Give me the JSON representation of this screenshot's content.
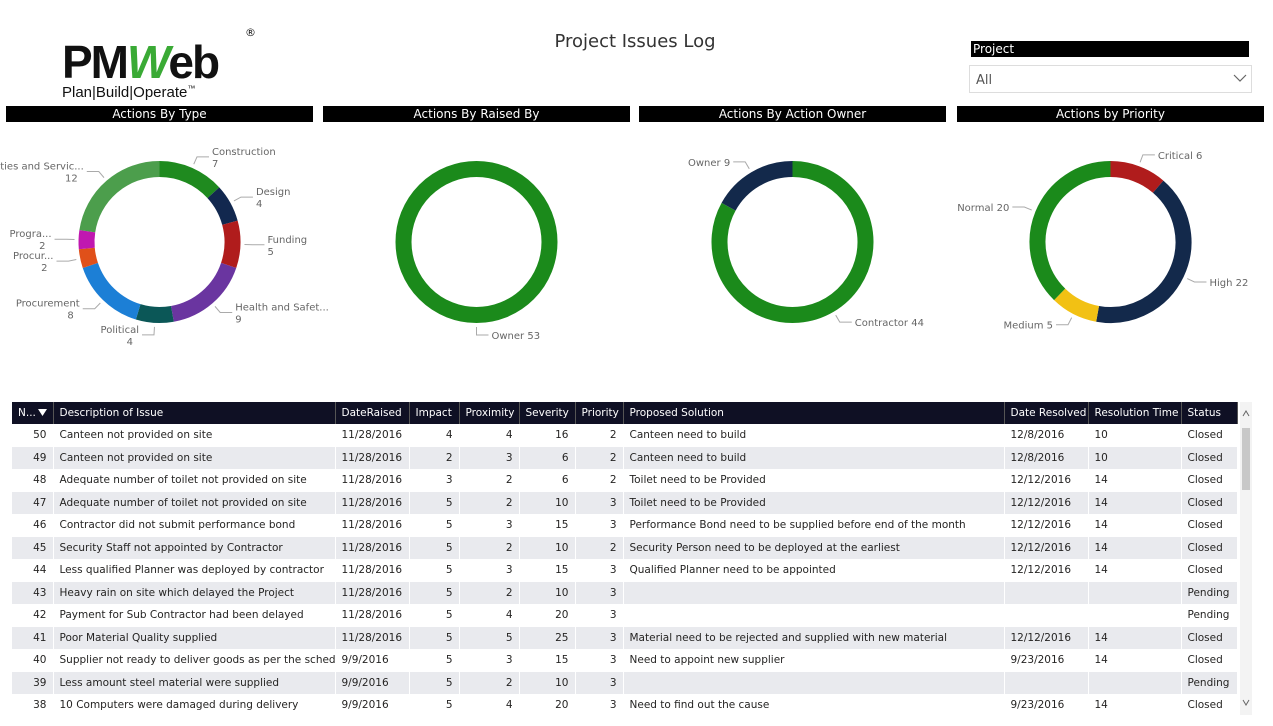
{
  "header": {
    "logo": {
      "parts": [
        "PM",
        "W",
        "eb"
      ],
      "registered": "®",
      "tagline": "Plan|Build|Operate",
      "trademark": "™"
    },
    "title": "Project Issues Log"
  },
  "filter": {
    "label": "Project",
    "value": "All"
  },
  "chart_data": [
    {
      "type": "pie",
      "donut": true,
      "title": "Actions By Type",
      "categories": [
        "Construction",
        "Design",
        "Funding",
        "Health and Safet...",
        "Political",
        "Procurement",
        "Procur...",
        "Progra...",
        "Utilities and Servic..."
      ],
      "values": [
        7,
        4,
        5,
        9,
        4,
        8,
        2,
        2,
        12
      ],
      "colors": [
        "#1f8a1f",
        "#12284f",
        "#b01c1c",
        "#6a35a0",
        "#0b5757",
        "#1c7fd6",
        "#e0501a",
        "#c018b0",
        "#4c9e4c"
      ]
    },
    {
      "type": "pie",
      "donut": true,
      "title": "Actions By Raised By",
      "categories": [
        "Owner"
      ],
      "values": [
        53
      ],
      "colors": [
        "#1b8a1b"
      ]
    },
    {
      "type": "pie",
      "donut": true,
      "title": "Actions By Action Owner",
      "categories": [
        "Contractor",
        "Owner"
      ],
      "values": [
        44,
        9
      ],
      "colors": [
        "#1b8a1b",
        "#13294b"
      ]
    },
    {
      "type": "pie",
      "donut": true,
      "title": "Actions by Priority",
      "categories": [
        "Critical",
        "High",
        "Medium",
        "Normal"
      ],
      "values": [
        6,
        22,
        5,
        20
      ],
      "colors": [
        "#b01c1c",
        "#13294b",
        "#f2c114",
        "#1b8a1b"
      ]
    }
  ],
  "table": {
    "columns": [
      "N...",
      "Description of Issue",
      "DateRaised",
      "Impact",
      "Proximity",
      "Severity",
      "Priority",
      "Proposed Solution",
      "Date Resolved",
      "Resolution Time",
      "Status"
    ],
    "rows": [
      [
        "50",
        "Canteen not provided on site",
        "11/28/2016",
        "4",
        "4",
        "16",
        "2",
        "Canteen need to build",
        "12/8/2016",
        "10",
        "Closed"
      ],
      [
        "49",
        "Canteen not provided on site",
        "11/28/2016",
        "2",
        "3",
        "6",
        "2",
        "Canteen need to build",
        "12/8/2016",
        "10",
        "Closed"
      ],
      [
        "48",
        "Adequate number of toilet not provided on site",
        "11/28/2016",
        "3",
        "2",
        "6",
        "2",
        "Toilet need to be Provided",
        "12/12/2016",
        "14",
        "Closed"
      ],
      [
        "47",
        "Adequate number of toilet not provided on site",
        "11/28/2016",
        "5",
        "2",
        "10",
        "3",
        "Toilet need to be Provided",
        "12/12/2016",
        "14",
        "Closed"
      ],
      [
        "46",
        "Contractor did not submit performance bond",
        "11/28/2016",
        "5",
        "3",
        "15",
        "3",
        "Performance Bond need to be supplied before end of the month",
        "12/12/2016",
        "14",
        "Closed"
      ],
      [
        "45",
        "Security Staff not appointed by Contractor",
        "11/28/2016",
        "5",
        "2",
        "10",
        "2",
        "Security Person need to be deployed at the earliest",
        "12/12/2016",
        "14",
        "Closed"
      ],
      [
        "44",
        "Less qualified Planner was deployed by contractor",
        "11/28/2016",
        "5",
        "3",
        "15",
        "3",
        "Qualified Planner need to be appointed",
        "12/12/2016",
        "14",
        "Closed"
      ],
      [
        "43",
        "Heavy rain on site which delayed the Project",
        "11/28/2016",
        "5",
        "2",
        "10",
        "3",
        null,
        null,
        null,
        "Pending"
      ],
      [
        "42",
        "Payment for Sub Contractor had been delayed",
        "11/28/2016",
        "5",
        "4",
        "20",
        "3",
        null,
        null,
        null,
        "Pending"
      ],
      [
        "41",
        "Poor Material Quality supplied",
        "11/28/2016",
        "5",
        "5",
        "25",
        "3",
        "Material need to be rejected and supplied with new material",
        "12/12/2016",
        "14",
        "Closed"
      ],
      [
        "40",
        "Supplier not ready to deliver goods as per the schedule",
        "9/9/2016",
        "5",
        "3",
        "15",
        "3",
        "Need to appoint new supplier",
        "9/23/2016",
        "14",
        "Closed"
      ],
      [
        "39",
        "Less amount steel material were supplied",
        "9/9/2016",
        "5",
        "2",
        "10",
        "3",
        null,
        null,
        null,
        "Pending"
      ],
      [
        "38",
        "10 Computers were damaged during delivery",
        "9/9/2016",
        "5",
        "4",
        "20",
        "3",
        "Need to find out the cause",
        "9/23/2016",
        "14",
        "Closed"
      ]
    ]
  }
}
